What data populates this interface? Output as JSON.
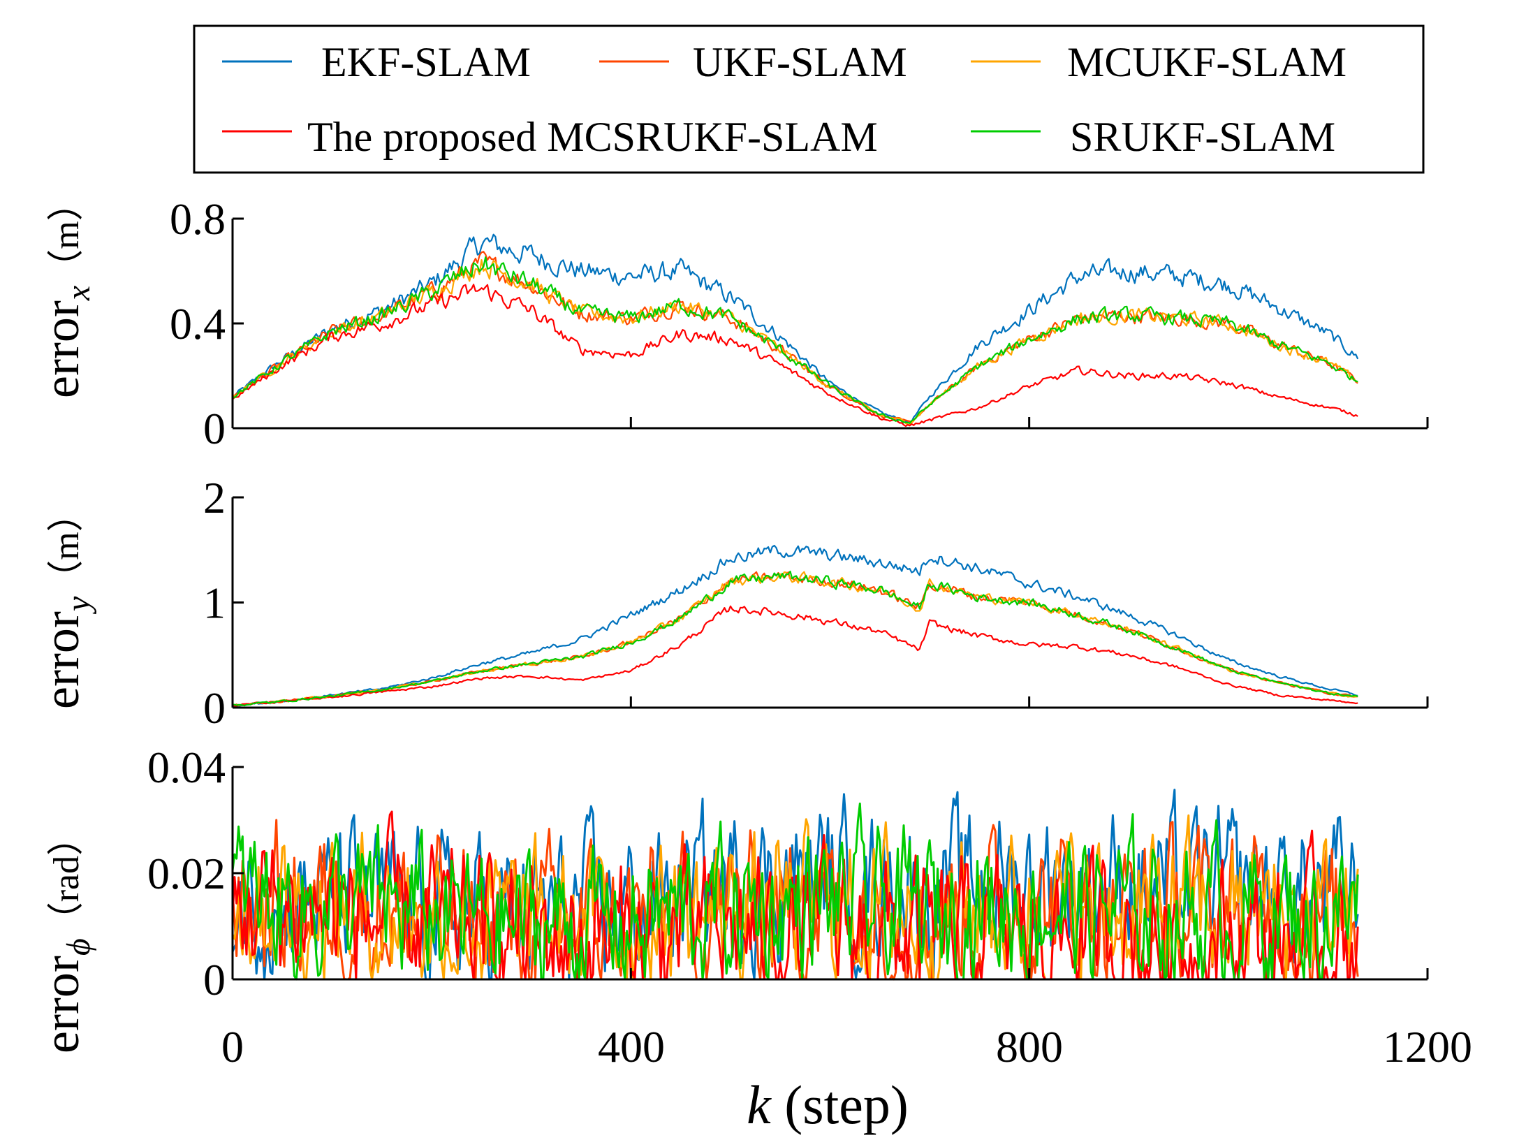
{
  "legend": {
    "items": [
      {
        "label": "EKF-SLAM",
        "color": "#0072BD"
      },
      {
        "label": "UKF-SLAM",
        "color": "#FF4500"
      },
      {
        "label": "MCUKF-SLAM",
        "color": "#FFA500"
      },
      {
        "label": "The proposed MCSRUKF-SLAM",
        "color": "#FF0000"
      },
      {
        "label": "SRUKF-SLAM",
        "color": "#00CC00"
      }
    ]
  },
  "axes": {
    "xlabel_italic": "k",
    "xlabel_rest": " (step)",
    "xticks": [
      "0",
      "400",
      "800",
      "1200"
    ],
    "panel1": {
      "ylabel_main": "error",
      "ylabel_sub": "x",
      "ylabel_unit": "（m）",
      "yticks": [
        "0",
        "0.4",
        "0.8"
      ]
    },
    "panel2": {
      "ylabel_main": "error",
      "ylabel_sub": "y",
      "ylabel_unit": "（m）",
      "yticks": [
        "0",
        "1",
        "2"
      ]
    },
    "panel3": {
      "ylabel_main": "error",
      "ylabel_sub": "ϕ",
      "ylabel_unit": "（rad）",
      "yticks": [
        "0",
        "0.02",
        "0.04"
      ]
    }
  },
  "chart_data": [
    {
      "type": "line",
      "ylabel": "error_x (m)",
      "xlabel": "k (step)",
      "xlim": [
        0,
        1200
      ],
      "ylim": [
        0,
        0.8
      ],
      "x": [
        0,
        50,
        100,
        150,
        200,
        250,
        300,
        350,
        400,
        450,
        500,
        550,
        600,
        650,
        680,
        700,
        750,
        800,
        850,
        900,
        950,
        1000,
        1050,
        1100,
        1130
      ],
      "series": [
        {
          "name": "EKF-SLAM",
          "color": "#0072BD",
          "values": [
            0.12,
            0.26,
            0.38,
            0.45,
            0.55,
            0.71,
            0.66,
            0.6,
            0.58,
            0.6,
            0.5,
            0.35,
            0.17,
            0.06,
            0.02,
            0.12,
            0.32,
            0.45,
            0.58,
            0.6,
            0.58,
            0.55,
            0.46,
            0.36,
            0.27
          ]
        },
        {
          "name": "UKF-SLAM",
          "color": "#FF4500",
          "values": [
            0.12,
            0.25,
            0.37,
            0.43,
            0.52,
            0.63,
            0.55,
            0.44,
            0.42,
            0.47,
            0.42,
            0.3,
            0.16,
            0.05,
            0.02,
            0.09,
            0.24,
            0.34,
            0.42,
            0.43,
            0.42,
            0.4,
            0.32,
            0.25,
            0.18
          ]
        },
        {
          "name": "MCUKF-SLAM",
          "color": "#FFA500",
          "values": [
            0.12,
            0.25,
            0.37,
            0.43,
            0.52,
            0.63,
            0.55,
            0.44,
            0.42,
            0.47,
            0.42,
            0.3,
            0.16,
            0.05,
            0.02,
            0.09,
            0.24,
            0.34,
            0.42,
            0.43,
            0.42,
            0.4,
            0.32,
            0.25,
            0.18
          ]
        },
        {
          "name": "The proposed MCSRUKF-SLAM",
          "color": "#FF0000",
          "values": [
            0.11,
            0.24,
            0.35,
            0.4,
            0.47,
            0.53,
            0.45,
            0.3,
            0.28,
            0.36,
            0.34,
            0.24,
            0.13,
            0.04,
            0.01,
            0.03,
            0.08,
            0.16,
            0.22,
            0.2,
            0.2,
            0.17,
            0.12,
            0.08,
            0.05
          ]
        },
        {
          "name": "SRUKF-SLAM",
          "color": "#00CC00",
          "values": [
            0.12,
            0.25,
            0.37,
            0.43,
            0.52,
            0.63,
            0.55,
            0.44,
            0.42,
            0.47,
            0.42,
            0.3,
            0.16,
            0.05,
            0.02,
            0.09,
            0.24,
            0.34,
            0.42,
            0.43,
            0.42,
            0.4,
            0.32,
            0.25,
            0.18
          ]
        }
      ]
    },
    {
      "type": "line",
      "ylabel": "error_y (m)",
      "xlabel": "k (step)",
      "xlim": [
        0,
        1200
      ],
      "ylim": [
        0,
        2
      ],
      "x": [
        0,
        50,
        100,
        150,
        200,
        250,
        300,
        350,
        400,
        450,
        500,
        550,
        600,
        650,
        690,
        700,
        750,
        800,
        850,
        900,
        950,
        1000,
        1050,
        1100,
        1130
      ],
      "series": [
        {
          "name": "EKF-SLAM",
          "color": "#0072BD",
          "values": [
            0.02,
            0.06,
            0.12,
            0.18,
            0.28,
            0.42,
            0.52,
            0.65,
            0.88,
            1.12,
            1.42,
            1.5,
            1.45,
            1.38,
            1.3,
            1.45,
            1.32,
            1.18,
            1.05,
            0.88,
            0.68,
            0.45,
            0.3,
            0.18,
            0.12
          ]
        },
        {
          "name": "UKF-SLAM",
          "color": "#FF4500",
          "values": [
            0.02,
            0.06,
            0.11,
            0.17,
            0.25,
            0.35,
            0.42,
            0.48,
            0.62,
            0.85,
            1.2,
            1.25,
            1.2,
            1.12,
            0.95,
            1.18,
            1.05,
            1.0,
            0.88,
            0.74,
            0.56,
            0.36,
            0.24,
            0.14,
            0.1
          ]
        },
        {
          "name": "MCUKF-SLAM",
          "color": "#FFA500",
          "values": [
            0.02,
            0.06,
            0.11,
            0.17,
            0.25,
            0.35,
            0.42,
            0.48,
            0.62,
            0.85,
            1.2,
            1.25,
            1.2,
            1.12,
            0.95,
            1.18,
            1.05,
            1.0,
            0.88,
            0.74,
            0.56,
            0.36,
            0.24,
            0.14,
            0.1
          ]
        },
        {
          "name": "The proposed MCSRUKF-SLAM",
          "color": "#FF0000",
          "values": [
            0.02,
            0.06,
            0.1,
            0.15,
            0.2,
            0.28,
            0.3,
            0.26,
            0.35,
            0.6,
            0.95,
            0.9,
            0.82,
            0.72,
            0.55,
            0.8,
            0.68,
            0.6,
            0.58,
            0.5,
            0.38,
            0.22,
            0.12,
            0.07,
            0.05
          ]
        },
        {
          "name": "SRUKF-SLAM",
          "color": "#00CC00",
          "values": [
            0.02,
            0.06,
            0.11,
            0.17,
            0.25,
            0.35,
            0.42,
            0.48,
            0.62,
            0.85,
            1.2,
            1.25,
            1.2,
            1.12,
            0.95,
            1.18,
            1.05,
            1.0,
            0.88,
            0.74,
            0.56,
            0.36,
            0.24,
            0.14,
            0.1
          ]
        }
      ]
    },
    {
      "type": "line",
      "ylabel": "error_phi (rad)",
      "xlabel": "k (step)",
      "xlim": [
        0,
        1200
      ],
      "ylim": [
        0,
        0.04
      ],
      "x": [
        0,
        100,
        200,
        300,
        400,
        500,
        600,
        700,
        800,
        900,
        1000,
        1100,
        1130
      ],
      "series": [
        {
          "name": "EKF-SLAM",
          "color": "#0072BD",
          "values": [
            0.016,
            0.015,
            0.013,
            0.012,
            0.014,
            0.018,
            0.019,
            0.017,
            0.019,
            0.018,
            0.017,
            0.016,
            0.017
          ]
        },
        {
          "name": "UKF-SLAM",
          "color": "#FF4500",
          "values": [
            0.015,
            0.014,
            0.012,
            0.01,
            0.011,
            0.013,
            0.014,
            0.013,
            0.014,
            0.013,
            0.013,
            0.012,
            0.013
          ]
        },
        {
          "name": "MCUKF-SLAM",
          "color": "#FFA500",
          "values": [
            0.015,
            0.014,
            0.012,
            0.01,
            0.011,
            0.013,
            0.014,
            0.013,
            0.014,
            0.013,
            0.013,
            0.012,
            0.013
          ]
        },
        {
          "name": "The proposed MCSRUKF-SLAM",
          "color": "#FF0000",
          "values": [
            0.014,
            0.013,
            0.01,
            0.008,
            0.008,
            0.009,
            0.009,
            0.008,
            0.008,
            0.008,
            0.008,
            0.007,
            0.008
          ]
        },
        {
          "name": "SRUKF-SLAM",
          "color": "#00CC00",
          "values": [
            0.015,
            0.014,
            0.012,
            0.01,
            0.011,
            0.013,
            0.014,
            0.013,
            0.014,
            0.013,
            0.013,
            0.012,
            0.013
          ]
        }
      ]
    }
  ]
}
